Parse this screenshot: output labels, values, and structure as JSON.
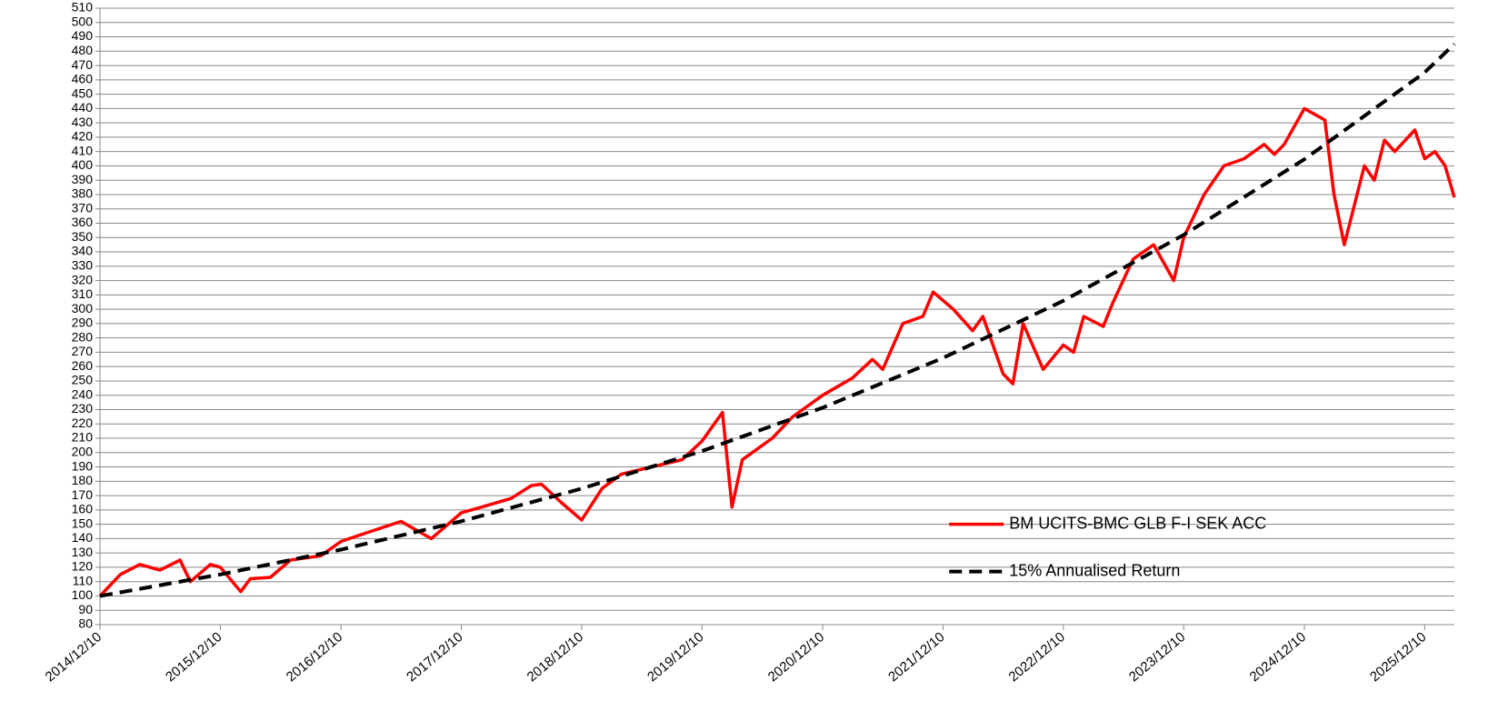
{
  "chart_data": {
    "type": "line",
    "xlim": [
      "2014/12/10",
      "2026/03/10"
    ],
    "xticks": [
      "2014/12/10",
      "2015/12/10",
      "2016/12/10",
      "2017/12/10",
      "2018/12/10",
      "2019/12/10",
      "2020/12/10",
      "2021/12/10",
      "2022/12/10",
      "2023/12/10",
      "2024/12/10",
      "2025/12/10"
    ],
    "ylim": [
      80,
      510
    ],
    "yticks": [
      80,
      90,
      100,
      110,
      120,
      130,
      140,
      150,
      160,
      170,
      180,
      190,
      200,
      210,
      220,
      230,
      240,
      250,
      260,
      270,
      280,
      290,
      300,
      310,
      320,
      330,
      340,
      350,
      360,
      370,
      380,
      390,
      400,
      410,
      420,
      430,
      440,
      450,
      460,
      470,
      480,
      490,
      500,
      510
    ],
    "grid": true,
    "legend": "lower right",
    "series": [
      {
        "name": "BM UCITS-BMC GLB F-I SEK ACC",
        "color": "#ff0000",
        "dash": false,
        "x": [
          "2014/12/10",
          "2015/02/10",
          "2015/04/10",
          "2015/06/10",
          "2015/08/10",
          "2015/09/10",
          "2015/11/10",
          "2015/12/10",
          "2016/02/10",
          "2016/03/10",
          "2016/05/10",
          "2016/07/10",
          "2016/10/10",
          "2016/12/10",
          "2017/03/10",
          "2017/06/10",
          "2017/09/10",
          "2017/12/10",
          "2018/02/10",
          "2018/05/10",
          "2018/07/10",
          "2018/08/10",
          "2018/10/10",
          "2018/12/10",
          "2019/02/10",
          "2019/04/10",
          "2019/07/10",
          "2019/10/10",
          "2019/12/10",
          "2020/02/10",
          "2020/03/10",
          "2020/04/10",
          "2020/07/10",
          "2020/09/10",
          "2020/12/10",
          "2021/03/10",
          "2021/05/10",
          "2021/06/10",
          "2021/08/10",
          "2021/10/10",
          "2021/11/10",
          "2022/01/10",
          "2022/03/10",
          "2022/04/10",
          "2022/06/10",
          "2022/07/10",
          "2022/08/10",
          "2022/10/10",
          "2022/12/10",
          "2023/01/10",
          "2023/02/10",
          "2023/04/10",
          "2023/05/10",
          "2023/07/10",
          "2023/09/10",
          "2023/11/10",
          "2023/12/10",
          "2024/02/10",
          "2024/04/10",
          "2024/06/10",
          "2024/08/10",
          "2024/09/10",
          "2024/10/10",
          "2024/12/10",
          "2025/02/10",
          "2025/03/10",
          "2025/04/10",
          "2025/06/10",
          "2025/07/10",
          "2025/08/10",
          "2025/09/10",
          "2025/11/10",
          "2025/12/10",
          "2026/01/10",
          "2026/02/10",
          "2026/03/10"
        ],
        "values": [
          100,
          115,
          122,
          118,
          125,
          110,
          122,
          120,
          103,
          112,
          113,
          125,
          128,
          138,
          145,
          152,
          140,
          158,
          162,
          168,
          177,
          178,
          165,
          153,
          175,
          185,
          190,
          195,
          208,
          228,
          162,
          195,
          210,
          225,
          240,
          252,
          265,
          258,
          290,
          295,
          312,
          300,
          285,
          295,
          255,
          248,
          290,
          258,
          275,
          270,
          295,
          288,
          305,
          335,
          345,
          320,
          350,
          380,
          400,
          405,
          415,
          408,
          415,
          440,
          432,
          380,
          345,
          400,
          390,
          418,
          410,
          425,
          405,
          410,
          400,
          378
        ]
      },
      {
        "name": "15% Annualised Return",
        "color": "#000000",
        "dash": true,
        "x": [
          "2014/12/10",
          "2015/12/10",
          "2016/12/10",
          "2017/12/10",
          "2018/12/10",
          "2019/12/10",
          "2020/12/10",
          "2021/12/10",
          "2022/12/10",
          "2023/12/10",
          "2024/12/10",
          "2025/12/10",
          "2026/03/10"
        ],
        "values": [
          100,
          115,
          132.3,
          152.1,
          174.9,
          201.1,
          231.3,
          266,
          305.9,
          351.8,
          404.6,
          465.2,
          485
        ]
      }
    ]
  }
}
